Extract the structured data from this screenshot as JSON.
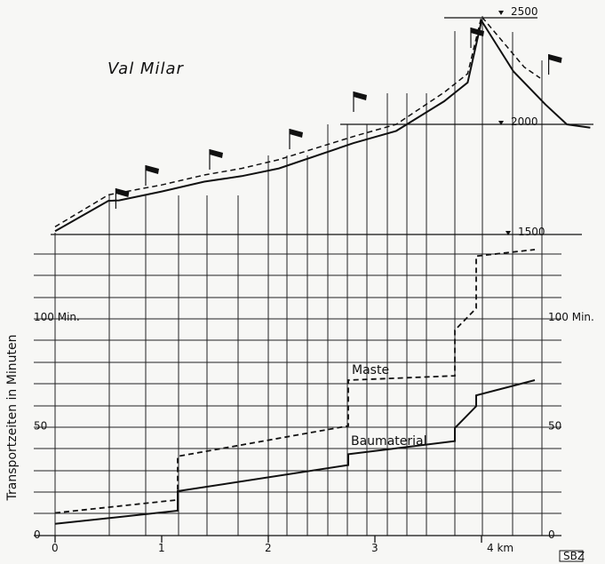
{
  "chart_data": {
    "type": "line",
    "title": "Val  Milar",
    "ylabel": "Transportzeiten in Minuten",
    "x_unit_label": "4 km",
    "x_ticks": [
      0,
      1,
      2,
      3,
      4
    ],
    "x_tick_labels": [
      "0",
      "1",
      "2",
      "3",
      "4 km"
    ],
    "left_y_ticks": [
      0,
      50,
      100
    ],
    "left_y_tick_labels": [
      "0",
      "50",
      "100 Min."
    ],
    "right_y_ticks": [
      0,
      50,
      100
    ],
    "right_y_tick_labels": [
      "0",
      "50",
      "100 Min."
    ],
    "elevation_ticks": [
      1500,
      2000,
      2500
    ],
    "elevation_tick_labels": [
      "1500",
      "2000",
      "2500"
    ],
    "series": [
      {
        "name": "Maste",
        "style": "dashed",
        "points": [
          [
            0.0,
            10
          ],
          [
            1.15,
            16
          ],
          [
            1.15,
            36
          ],
          [
            2.75,
            50
          ],
          [
            2.75,
            71
          ],
          [
            3.75,
            73
          ],
          [
            3.75,
            94
          ],
          [
            3.95,
            104
          ],
          [
            3.95,
            128
          ],
          [
            4.5,
            131
          ]
        ]
      },
      {
        "name": "Baumaterial",
        "style": "solid",
        "points": [
          [
            0.0,
            5
          ],
          [
            1.15,
            11
          ],
          [
            1.15,
            20
          ],
          [
            2.75,
            32
          ],
          [
            2.75,
            37
          ],
          [
            3.75,
            43
          ],
          [
            3.75,
            49
          ],
          [
            3.95,
            59
          ],
          [
            3.95,
            64
          ],
          [
            4.5,
            71
          ]
        ]
      }
    ],
    "terrain_profile": {
      "solid": [
        [
          0.0,
          1515
        ],
        [
          0.5,
          1653
        ],
        [
          0.6,
          1655
        ],
        [
          1.0,
          1695
        ],
        [
          1.4,
          1740
        ],
        [
          1.75,
          1765
        ],
        [
          2.1,
          1800
        ],
        [
          2.8,
          1915
        ],
        [
          3.2,
          1970
        ],
        [
          3.65,
          2105
        ],
        [
          3.87,
          2190
        ],
        [
          4.0,
          2470
        ],
        [
          4.3,
          2240
        ],
        [
          4.6,
          2090
        ],
        [
          4.8,
          2000
        ],
        [
          5.02,
          1985
        ]
      ],
      "dashed": [
        [
          0.0,
          1535
        ],
        [
          0.5,
          1680
        ],
        [
          1.0,
          1725
        ],
        [
          1.4,
          1770
        ],
        [
          1.75,
          1800
        ],
        [
          2.1,
          1840
        ],
        [
          2.8,
          1945
        ],
        [
          3.2,
          2000
        ],
        [
          3.65,
          2145
        ],
        [
          3.87,
          2230
        ],
        [
          4.0,
          2490
        ],
        [
          4.4,
          2260
        ],
        [
          4.55,
          2210
        ]
      ],
      "flags_x": [
        0.57,
        0.85,
        1.45,
        2.2,
        2.8,
        3.9,
        4.63
      ]
    },
    "grid": true
  },
  "ui": {
    "source_badge": "SBZ"
  }
}
